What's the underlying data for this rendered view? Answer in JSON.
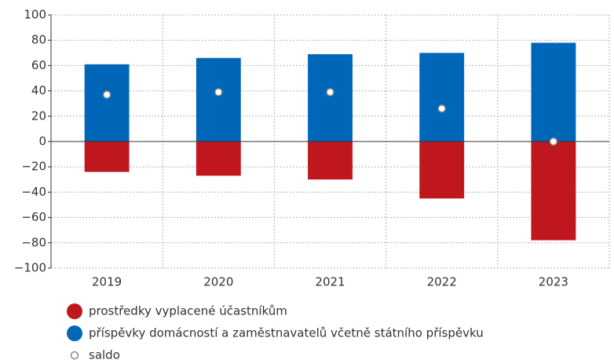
{
  "chart_data": {
    "type": "bar",
    "categories": [
      "2019",
      "2020",
      "2021",
      "2022",
      "2023"
    ],
    "series": [
      {
        "name": "prostředky vyplacené účastníkům",
        "color": "#c0171f",
        "values": [
          -24,
          -27,
          -30,
          -45,
          -78
        ]
      },
      {
        "name": "příspěvky domácností a zaměstnavatelů včetně státního příspěvku",
        "color": "#0067b8",
        "values": [
          61,
          66,
          69,
          70,
          78
        ]
      },
      {
        "name": "saldo",
        "color": "#ffffff",
        "style": "dot",
        "values": [
          37,
          39,
          39,
          26,
          0
        ]
      }
    ],
    "ylim": [
      -100,
      100
    ],
    "yticks": [
      {
        "value": -100,
        "label": "−100"
      },
      {
        "value": -80,
        "label": "−80"
      },
      {
        "value": -60,
        "label": "−60"
      },
      {
        "value": -40,
        "label": "−40"
      },
      {
        "value": -20,
        "label": "−20"
      },
      0,
      20,
      40,
      60,
      80,
      100
    ],
    "grid": true
  }
}
